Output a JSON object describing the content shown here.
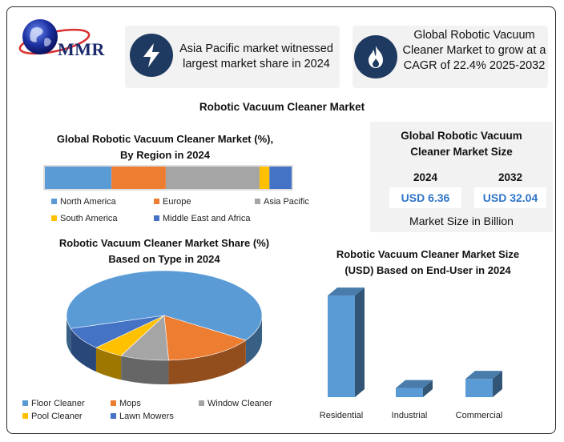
{
  "logo": {
    "text": "MMR"
  },
  "info_cards": [
    {
      "icon": "lightning-bolt-icon",
      "text": "Asia Pacific market witnessed largest market share in 2024"
    },
    {
      "icon": "flame-icon",
      "text": "Global Robotic Vacuum Cleaner Market to grow at a CAGR of 22.4% 2025-2032"
    }
  ],
  "main_title": "Robotic Vacuum Cleaner Market",
  "colors": {
    "navy": "#1f3a60",
    "blue": "#5b9bd5",
    "orange": "#ed7d31",
    "gray": "#a5a5a5",
    "yellow": "#ffc000",
    "dark_blue": "#4472c4",
    "value_text": "#2e74c8"
  },
  "market_size": {
    "title_line1": "Global Robotic Vacuum",
    "title_line2": "Cleaner Market Size",
    "year_a": "2024",
    "year_b": "2032",
    "value_a": "USD 6.36",
    "value_b": "USD 32.04",
    "footer": "Market Size in Billion"
  },
  "chart_data": [
    {
      "type": "bar",
      "orientation": "horizontal-stacked",
      "title": "Global Robotic Vacuum Cleaner Market (%), By Region in 2024",
      "title_line1": "Global Robotic Vacuum Cleaner Market (%),",
      "title_line2": "By Region in 2024",
      "categories": [
        "North America",
        "Europe",
        "Asia Pacific",
        "South America",
        "Middle East and Africa"
      ],
      "values": [
        27,
        22,
        38,
        4,
        9
      ],
      "legend_position": "bottom"
    },
    {
      "type": "pie",
      "title": "Robotic Vacuum Cleaner Market Share (%) Based on Type in 2024",
      "title_line1": "Robotic Vacuum Cleaner Market Share (%)",
      "title_line2": "Based on Type in 2024",
      "categories": [
        "Floor Cleaner",
        "Mops",
        "Window Cleaner",
        "Pool Cleaner",
        "Lawn Mowers"
      ],
      "values": [
        64,
        15,
        8,
        5,
        8
      ],
      "legend_position": "bottom"
    },
    {
      "type": "bar",
      "title": "Robotic Vacuum Cleaner Market Size (USD) Based on End-User in 2024",
      "title_line1": "Robotic Vacuum Cleaner Market Size",
      "title_line2": "(USD) Based on End-User in 2024",
      "categories": [
        "Residential",
        "Industrial",
        "Commercial"
      ],
      "values": [
        5.0,
        0.45,
        0.9
      ],
      "ylim": [
        0,
        5.2
      ],
      "grid": false
    }
  ]
}
